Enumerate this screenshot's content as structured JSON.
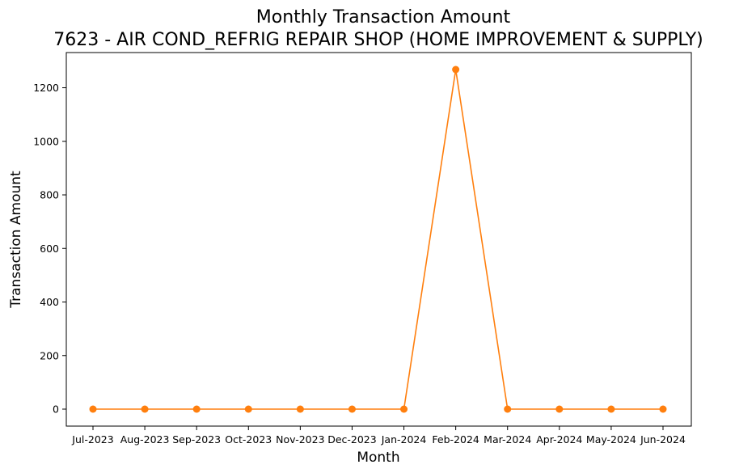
{
  "chart_data": {
    "type": "line",
    "title": "Monthly Transaction Amount",
    "subtitle": "7623 - AIR COND_REFRIG REPAIR SHOP (HOME IMPROVEMENT & SUPPLY)",
    "xlabel": "Month",
    "ylabel": "Transaction Amount",
    "categories": [
      "Jul-2023",
      "Aug-2023",
      "Sep-2023",
      "Oct-2023",
      "Nov-2023",
      "Dec-2023",
      "Jan-2024",
      "Feb-2024",
      "Mar-2024",
      "Apr-2024",
      "May-2024",
      "Jun-2024"
    ],
    "series": [
      {
        "values": [
          0,
          0,
          0,
          0,
          0,
          0,
          0,
          1268,
          0,
          0,
          0,
          0
        ],
        "color": "#ff7f0e",
        "marker": "circle"
      }
    ],
    "yticks": [
      0,
      200,
      400,
      600,
      800,
      1000,
      1200
    ],
    "ylim": [
      -63.4,
      1331.4
    ],
    "grid": false,
    "legend": "none"
  }
}
